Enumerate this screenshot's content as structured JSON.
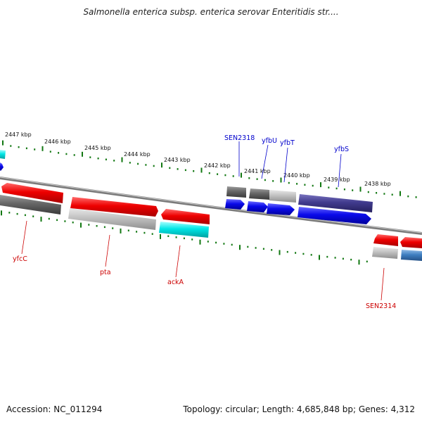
{
  "title": "Salmonella enterica subsp. enterica serovar Enteritidis str....",
  "footer": {
    "accession": "Accession: NC_011294",
    "stats": "Topology: circular; Length: 4,685,848 bp; Genes: 4,312"
  },
  "scale_labels": [
    "2447 kbp",
    "2446 kbp",
    "2445 kbp",
    "2444 kbp",
    "2443 kbp",
    "2442 kbp",
    "2441 kbp",
    "2440 kbp",
    "2439 kbp",
    "2438 kbp"
  ],
  "gene_labels_top": [
    "SEN2318",
    "yfbU",
    "yfbT",
    "yfbS"
  ],
  "gene_labels_bottom": [
    "yfcC",
    "pta",
    "ackA",
    "SEN2314"
  ],
  "colors": {
    "red": "#e50000",
    "gray_dark": "#666666",
    "gray_light": "#bdbdbd",
    "cyan": "#00e5e5",
    "blue": "#0a0ae8",
    "navy": "#3f3a8c",
    "steel": "#3d7fc0",
    "tick_green": "#117711",
    "top_label": "#0000cc",
    "bottom_label": "#cc0000"
  }
}
